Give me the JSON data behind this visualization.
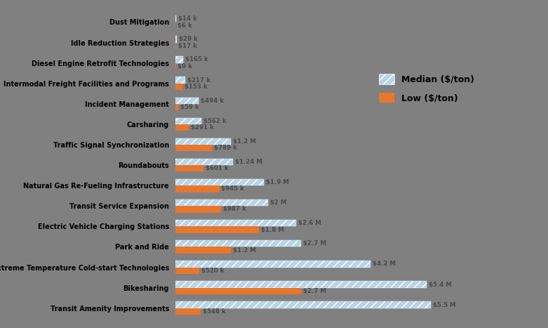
{
  "categories": [
    "Transit Amenity Improvements",
    "Bikesharing",
    "Extreme Temperature Cold-start Technologies",
    "Park and Ride",
    "Electric Vehicle Charging Stations",
    "Transit Service Expansion",
    "Natural Gas Re-Fueling Infrastructure",
    "Roundabouts",
    "Traffic Signal Synchronization",
    "Carsharing",
    "Incident Management",
    "Intermodal Freight Facilities and Programs",
    "Diesel Engine Retrofit Technologies",
    "Idle Reduction Strategies",
    "Dust Mitigation"
  ],
  "median_values": [
    5500000,
    5400000,
    4200000,
    2700000,
    2600000,
    2000000,
    1900000,
    1240000,
    1200000,
    562000,
    494000,
    217000,
    165000,
    29000,
    14000
  ],
  "low_values": [
    548000,
    2700000,
    520000,
    1200000,
    1800000,
    987000,
    945000,
    601000,
    789000,
    291000,
    59000,
    153000,
    9000,
    17000,
    6000
  ],
  "median_labels": [
    "$5.5 M",
    "$5.4 M",
    "$4.2 M",
    "$2.7 M",
    "$2.6 M",
    "$2 M",
    "$1.9 M",
    "$1.24 M",
    "$1.2 M",
    "$562 k",
    "$494 k",
    "$217 k",
    "$165 k",
    "$29 k",
    "$14 k"
  ],
  "low_labels": [
    "$548 k",
    "$2.7 M",
    "$520 k",
    "$1.2 M",
    "$1.8 M",
    "$987 k",
    "$945 k",
    "$601 k",
    "$789 k",
    "$291 k",
    "$59 k",
    "$153 k",
    "$9 k",
    "$17 k",
    "$6 k"
  ],
  "median_color": "#b8d4e8",
  "low_color": "#e8762c",
  "background_color": "#808080",
  "bar_height": 0.32,
  "legend_median_label": "Median ($/ton)",
  "legend_low_label": "Low ($/ton)"
}
